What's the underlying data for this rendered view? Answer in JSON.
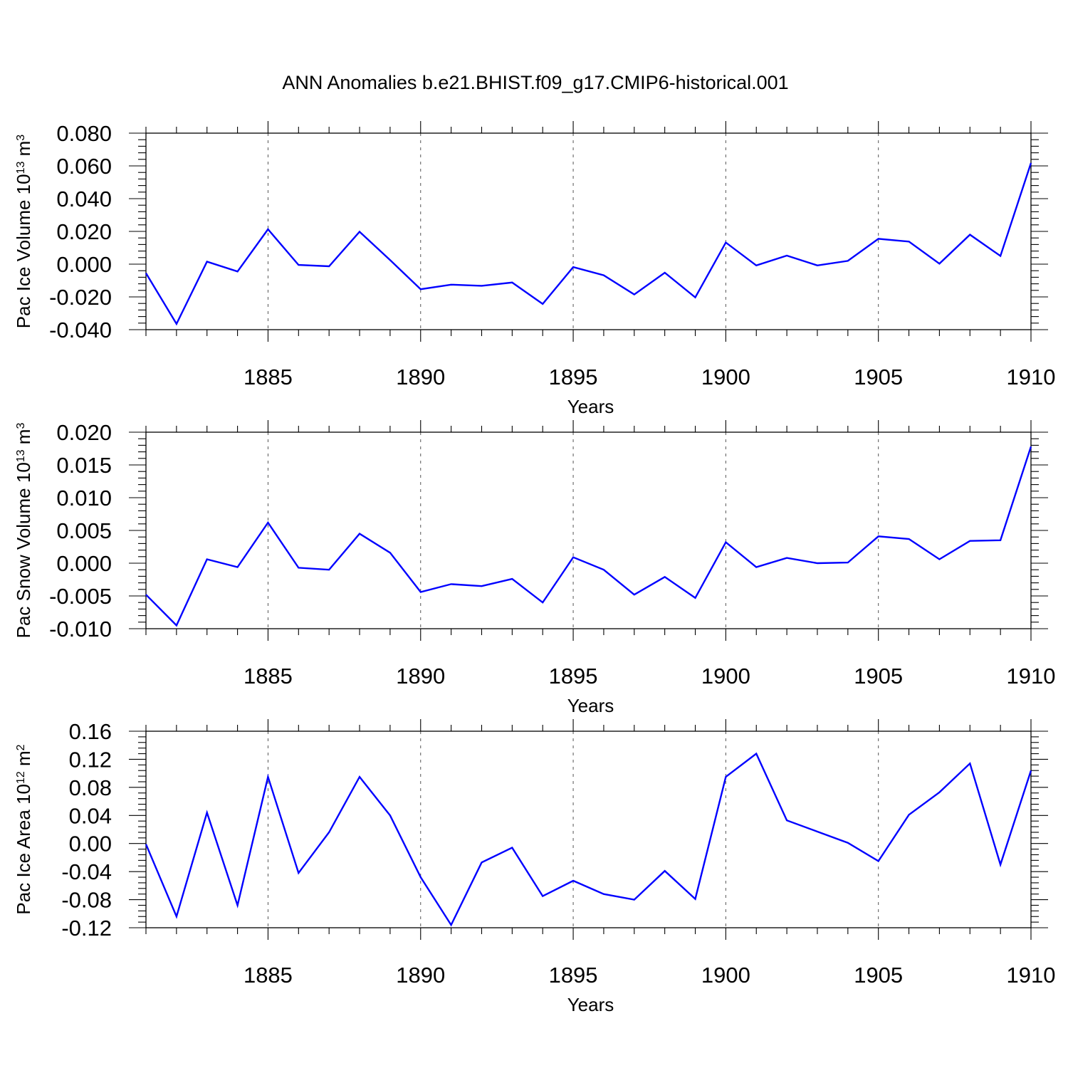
{
  "figure": {
    "title": "ANN Anomalies b.e21.BHIST.f09_g17.CMIP6-historical.001",
    "line_color": "#0000ff"
  },
  "chart_data": [
    {
      "type": "line",
      "title": "",
      "xlabel": "Years",
      "ylabel": "Pac Ice Volume 10",
      "ylabel_sup": "13",
      "ylabel_unit": " m",
      "ylabel_unit_sup": "3",
      "xlim": [
        1881,
        1910
      ],
      "ylim": [
        -0.04,
        0.08
      ],
      "x_ticks": [
        1885,
        1890,
        1895,
        1900,
        1905,
        1910
      ],
      "y_ticks": [
        -0.04,
        -0.02,
        0.0,
        0.02,
        0.04,
        0.06,
        0.08
      ],
      "y_tick_labels": [
        "-0.040",
        "-0.020",
        "0.000",
        "0.020",
        "0.040",
        "0.060",
        "0.080"
      ],
      "grid": "vertical dashed at major x ticks",
      "legend": "none",
      "series": [
        {
          "x": [
            1881,
            1882,
            1883,
            1884,
            1885,
            1886,
            1887,
            1888,
            1889,
            1890,
            1891,
            1892,
            1893,
            1894,
            1895,
            1896,
            1897,
            1898,
            1899,
            1900,
            1901,
            1902,
            1903,
            1904,
            1905,
            1906,
            1907,
            1908,
            1909,
            1910
          ],
          "values": [
            -0.0055,
            -0.0365,
            0.0015,
            -0.0045,
            0.0213,
            -0.0005,
            -0.0013,
            0.0198,
            0.0025,
            -0.0153,
            -0.0125,
            -0.0132,
            -0.0112,
            -0.0243,
            -0.0018,
            -0.0068,
            -0.0185,
            -0.0052,
            -0.0203,
            0.0132,
            -0.0008,
            0.0052,
            -0.0008,
            0.002,
            0.0155,
            0.0138,
            0.0003,
            0.018,
            0.005,
            0.0618
          ]
        }
      ]
    },
    {
      "type": "line",
      "title": "",
      "xlabel": "Years",
      "ylabel": "Pac Snow Volume 10",
      "ylabel_sup": "13",
      "ylabel_unit": " m",
      "ylabel_unit_sup": "3",
      "xlim": [
        1881,
        1910
      ],
      "ylim": [
        -0.01,
        0.02
      ],
      "x_ticks": [
        1885,
        1890,
        1895,
        1900,
        1905,
        1910
      ],
      "y_ticks": [
        -0.01,
        -0.005,
        0.0,
        0.005,
        0.01,
        0.015,
        0.02
      ],
      "y_tick_labels": [
        "-0.010",
        "-0.005",
        "0.000",
        "0.005",
        "0.010",
        "0.015",
        "0.020"
      ],
      "grid": "vertical dashed at major x ticks",
      "legend": "none",
      "series": [
        {
          "x": [
            1881,
            1882,
            1883,
            1884,
            1885,
            1886,
            1887,
            1888,
            1889,
            1890,
            1891,
            1892,
            1893,
            1894,
            1895,
            1896,
            1897,
            1898,
            1899,
            1900,
            1901,
            1902,
            1903,
            1904,
            1905,
            1906,
            1907,
            1908,
            1909,
            1910
          ],
          "values": [
            -0.0048,
            -0.0095,
            0.0006,
            -0.0006,
            0.0062,
            -0.0007,
            -0.001,
            0.0045,
            0.0016,
            -0.0044,
            -0.0032,
            -0.0035,
            -0.0024,
            -0.006,
            0.0009,
            -0.001,
            -0.0048,
            -0.0021,
            -0.0053,
            0.0032,
            -0.0006,
            0.0008,
            0.0,
            0.0001,
            0.0041,
            0.0037,
            0.0006,
            0.0034,
            0.0035,
            0.0178
          ]
        }
      ]
    },
    {
      "type": "line",
      "title": "",
      "xlabel": "Years",
      "ylabel": "Pac Ice Area 10",
      "ylabel_sup": "12",
      "ylabel_unit": " m",
      "ylabel_unit_sup": "2",
      "xlim": [
        1881,
        1910
      ],
      "ylim": [
        -0.12,
        0.16
      ],
      "x_ticks": [
        1885,
        1890,
        1895,
        1900,
        1905,
        1910
      ],
      "y_ticks": [
        -0.12,
        -0.08,
        -0.04,
        0.0,
        0.04,
        0.08,
        0.12,
        0.16
      ],
      "y_tick_labels": [
        "-0.12",
        "-0.08",
        "-0.04",
        "0.00",
        "0.04",
        "0.08",
        "0.12",
        "0.16"
      ],
      "grid": "vertical dashed at major x ticks",
      "legend": "none",
      "series": [
        {
          "x": [
            1881,
            1882,
            1883,
            1884,
            1885,
            1886,
            1887,
            1888,
            1889,
            1890,
            1891,
            1892,
            1893,
            1894,
            1895,
            1896,
            1897,
            1898,
            1899,
            1900,
            1901,
            1902,
            1903,
            1904,
            1905,
            1906,
            1907,
            1908,
            1909,
            1910
          ],
          "values": [
            -0.001,
            -0.104,
            0.044,
            -0.088,
            0.095,
            -0.042,
            0.016,
            0.095,
            0.04,
            -0.048,
            -0.116,
            -0.027,
            -0.006,
            -0.075,
            -0.053,
            -0.072,
            -0.08,
            -0.039,
            -0.079,
            0.095,
            0.128,
            0.033,
            0.017,
            0.001,
            -0.025,
            0.041,
            0.073,
            0.114,
            -0.03,
            0.104
          ]
        }
      ]
    }
  ]
}
